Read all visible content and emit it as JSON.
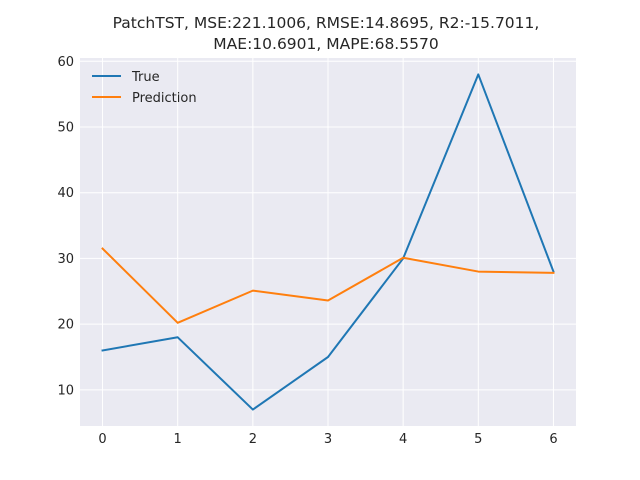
{
  "chart_data": {
    "type": "line",
    "title": "PatchTST, MSE:221.1006, RMSE:14.8695, R2:-15.7011,",
    "subtitle": "MAE:10.6901, MAPE:68.5570",
    "x": [
      0,
      1,
      2,
      3,
      4,
      5,
      6
    ],
    "series": [
      {
        "name": "True",
        "color": "#1f77b4",
        "values": [
          16,
          18,
          7,
          15,
          30,
          58,
          28
        ]
      },
      {
        "name": "Prediction",
        "color": "#ff7f0e",
        "values": [
          31.5,
          20.2,
          25.1,
          23.6,
          30.1,
          28,
          27.8
        ]
      }
    ],
    "xlim": [
      -0.3,
      6.3
    ],
    "ylim": [
      4.5,
      60.5
    ],
    "xticks": [
      0,
      1,
      2,
      3,
      4,
      5,
      6
    ],
    "yticks": [
      10,
      20,
      30,
      40,
      50,
      60
    ],
    "grid": true,
    "legend_position": "upper-left",
    "background_color": "#eaeaf2",
    "grid_color": "#ffffff"
  }
}
